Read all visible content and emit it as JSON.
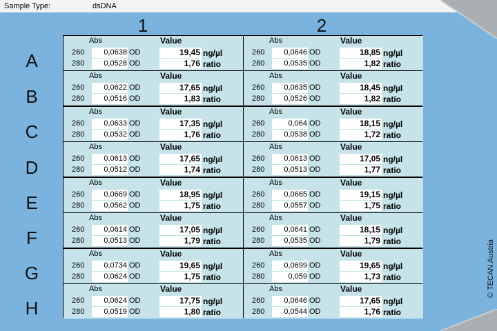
{
  "header": {
    "sample_type_label": "Sample Type:",
    "sample_type_value": "dsDNA"
  },
  "columns": [
    "1",
    "2"
  ],
  "rows": [
    "A",
    "B",
    "C",
    "D",
    "E",
    "F",
    "G",
    "H"
  ],
  "labels": {
    "abs": "Abs",
    "value": "Value",
    "od": "OD",
    "ng": "ng/µl",
    "ratio": "ratio",
    "wl1": "260",
    "wl2": "280"
  },
  "wells": {
    "A1": {
      "abs260": "0,0638",
      "abs280": "0,0528",
      "conc": "19,45",
      "ratio": "1,76"
    },
    "A2": {
      "abs260": "0,0646",
      "abs280": "0,0535",
      "conc": "18,85",
      "ratio": "1,82"
    },
    "B1": {
      "abs260": "0,0622",
      "abs280": "0,0516",
      "conc": "17,65",
      "ratio": "1,83"
    },
    "B2": {
      "abs260": "0,0635",
      "abs280": "0,0526",
      "conc": "18,45",
      "ratio": "1,82"
    },
    "C1": {
      "abs260": "0,0633",
      "abs280": "0,0532",
      "conc": "17,35",
      "ratio": "1,76"
    },
    "C2": {
      "abs260": "0,064",
      "abs280": "0,0538",
      "conc": "18,15",
      "ratio": "1,72"
    },
    "D1": {
      "abs260": "0,0613",
      "abs280": "0,0512",
      "conc": "17,65",
      "ratio": "1,74"
    },
    "D2": {
      "abs260": "0,0613",
      "abs280": "0,0513",
      "conc": "17,05",
      "ratio": "1,77"
    },
    "E1": {
      "abs260": "0,0669",
      "abs280": "0,0562",
      "conc": "18,95",
      "ratio": "1,75"
    },
    "E2": {
      "abs260": "0,0665",
      "abs280": "0,0557",
      "conc": "19,15",
      "ratio": "1,75"
    },
    "F1": {
      "abs260": "0,0614",
      "abs280": "0,0513",
      "conc": "17,05",
      "ratio": "1,79"
    },
    "F2": {
      "abs260": "0,0641",
      "abs280": "0,0535",
      "conc": "18,15",
      "ratio": "1,79"
    },
    "G1": {
      "abs260": "0,0734",
      "abs280": "0,0624",
      "conc": "19,65",
      "ratio": "1,75"
    },
    "G2": {
      "abs260": "0,0699",
      "abs280": "0,059",
      "conc": "19,65",
      "ratio": "1,73"
    },
    "H1": {
      "abs260": "0,0624",
      "abs280": "0,0519",
      "conc": "17,75",
      "ratio": "1,80"
    },
    "H2": {
      "abs260": "0,0646",
      "abs280": "0,0544",
      "conc": "17,65",
      "ratio": "1,76"
    }
  },
  "copyright": "© TECAN Austria"
}
